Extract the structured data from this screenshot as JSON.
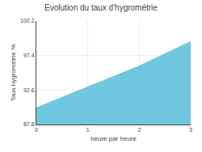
{
  "chart_data": {
    "type": "area",
    "title": "Evolution du taux d'hygrométrie",
    "xlabel": "heure par heure",
    "ylabel": "Taux hygrométrie %",
    "x": [
      0,
      1,
      2,
      3
    ],
    "values": [
      90.1,
      93.0,
      95.9,
      99.3
    ],
    "color": "#6fc8df",
    "xlim": [
      0,
      3
    ],
    "xticks": [
      0,
      1,
      2,
      3
    ],
    "ylim": [
      87.8,
      102.2
    ],
    "yticks": [
      87.8,
      92.6,
      97.4,
      102.2
    ],
    "grid": true
  }
}
